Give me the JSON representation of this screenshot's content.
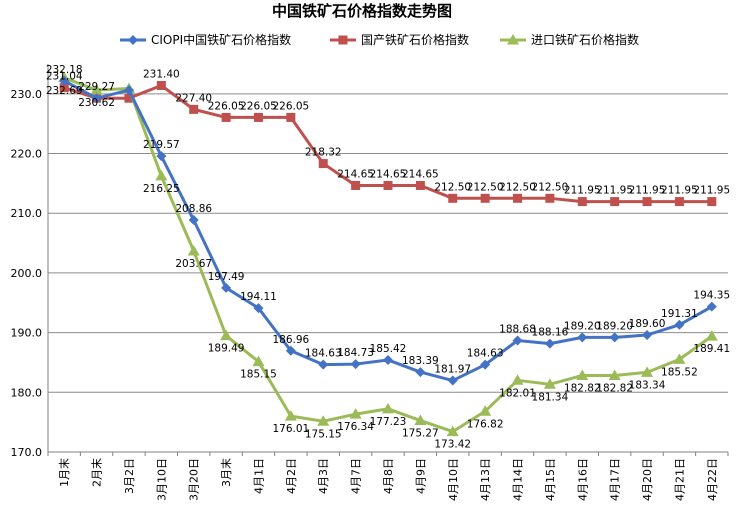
{
  "chart_data": {
    "type": "line",
    "title": "中国铁矿石价格指数走势图",
    "xlabel": "",
    "ylabel": "",
    "ylim": [
      170,
      235
    ],
    "yticks": [
      "170.0",
      "180.0",
      "190.0",
      "200.0",
      "210.0",
      "220.0",
      "230.0"
    ],
    "legend_position": "top",
    "grid": "horizontal",
    "categories": [
      "1月末",
      "2月末",
      "3月2日",
      "3月10日",
      "3月20日",
      "3月末",
      "4月1日",
      "4月2日",
      "4月3日",
      "4月7日",
      "4月8日",
      "4月9日",
      "4月10日",
      "4月13日",
      "4月14日",
      "4月15日",
      "4月16日",
      "4月17日",
      "4月20日",
      "4月21日",
      "4月22日"
    ],
    "series": [
      {
        "name": "CIOPI中国铁矿石价格指数",
        "color": "#4472C4",
        "marker": "diamond",
        "values": [
          232.18,
          229.27,
          230.62,
          219.57,
          208.86,
          197.49,
          194.11,
          186.96,
          184.63,
          184.73,
          185.42,
          183.39,
          181.97,
          184.63,
          188.68,
          188.16,
          189.2,
          189.2,
          189.6,
          191.31,
          194.35
        ],
        "labels": [
          "232.18",
          "229.27",
          "",
          "219.57",
          "208.86",
          "197.49",
          "194.11",
          "186.96",
          "184.63",
          "184.73",
          "185.42",
          "183.39",
          "181.97",
          "184.63",
          "188.68",
          "188.16",
          "189.20",
          "189.20",
          "189.60",
          "191.31",
          "194.35"
        ]
      },
      {
        "name": "国产铁矿石价格指数",
        "color": "#C0504D",
        "marker": "square",
        "values": [
          231.04,
          229.27,
          229.27,
          231.4,
          227.4,
          226.05,
          226.05,
          226.05,
          218.32,
          214.65,
          214.65,
          214.65,
          212.5,
          212.5,
          212.5,
          212.5,
          211.95,
          211.95,
          211.95,
          211.95,
          211.95
        ],
        "labels": [
          "231.04",
          "",
          "",
          "231.40",
          "227.40",
          "226.05",
          "226.05",
          "226.05",
          "218.32",
          "214.65",
          "214.65",
          "214.65",
          "212.50",
          "212.50",
          "212.50",
          "212.50",
          "211.95",
          "211.95",
          "211.95",
          "211.95",
          "211.95"
        ]
      },
      {
        "name": "进口铁矿石价格指数",
        "color": "#9BBB59",
        "marker": "triangle",
        "values": [
          232.69,
          230.62,
          230.9,
          216.25,
          203.67,
          189.49,
          185.15,
          176.01,
          175.15,
          176.34,
          177.23,
          175.27,
          173.42,
          176.82,
          182.01,
          181.34,
          182.82,
          182.82,
          183.34,
          185.52,
          189.41
        ],
        "labels": [
          "232.69",
          "230.62",
          "",
          "216.25",
          "203.67",
          "189.49",
          "185.15",
          "176.01",
          "175.15",
          "176.34",
          "177.23",
          "175.27",
          "173.42",
          "176.82",
          "182.01",
          "181.34",
          "182.82",
          "182.82",
          "183.34",
          "185.52",
          "189.41"
        ]
      }
    ]
  }
}
